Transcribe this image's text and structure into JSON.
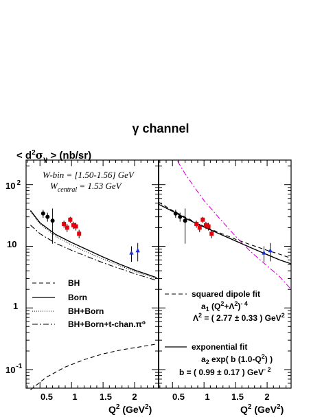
{
  "title": "γ channel",
  "yaxis_label": {
    "prefix": "< d",
    "sup": "2",
    "sym": "σ",
    "sub": "γ",
    "suffix": " >  (nb/sr)"
  },
  "xaxis_label": {
    "main": "Q",
    "sup": "2",
    "units": " (GeV",
    "units_sup": "2",
    "close": ")"
  },
  "bin_info": {
    "line1": "W-bin = [1.50-1.56] GeV",
    "line2_main": "W",
    "line2_sub": "central",
    "line2_rest": " = 1.53 GeV"
  },
  "y_tick_labels": [
    {
      "base": "10",
      "exp": "2",
      "value": 100
    },
    {
      "base": "10",
      "exp": "",
      "value": 10
    },
    {
      "base": "1",
      "exp": "",
      "value": 1
    },
    {
      "base": "10",
      "exp": "-1",
      "value": 0.1
    }
  ],
  "x_tick_labels": [
    "0.5",
    "1",
    "1.5",
    "2"
  ],
  "left_legend": [
    "BH",
    "Born",
    "BH+Born",
    "BH+Born+t-chan.π⁰"
  ],
  "right_legend": {
    "dipole_title": "squared dipole fit",
    "dipole_formula_a": "a",
    "dipole_formula_a_sub": "1",
    "dipole_formula_rest": "  (Q",
    "dipole_formula_q_sup": "2",
    "dipole_formula_mid": "+Λ",
    "dipole_formula_l_sup": "2",
    "dipole_formula_end": ")",
    "dipole_formula_exp": "- 4",
    "dipole_param_pre": "Λ",
    "dipole_param_sup": "2",
    "dipole_param_rest": " = ( 2.77 ± 0.33 ) GeV",
    "dipole_param_unit_sup": "2",
    "exp_title": "exponential fit",
    "exp_formula_a": "a",
    "exp_formula_a_sub": "2",
    "exp_formula_rest": "  exp( b (1.0-Q",
    "exp_formula_sup": "2",
    "exp_formula_end": ") )",
    "exp_param": "b = ( 0.99 ± 0.17 )  GeV",
    "exp_param_sup": "- 2"
  },
  "colors": {
    "black_points": "#000000",
    "red_points": "#e8000b",
    "blue_points": "#1f2bd6",
    "magenta_curve": "#e000e0"
  },
  "chart_data": {
    "type": "scatter",
    "title": "γ channel",
    "x_scale": "linear",
    "y_scale": "log",
    "xlim": [
      0.28,
      2.38
    ],
    "ylim": [
      0.05,
      250
    ],
    "panels": [
      {
        "name": "left",
        "series": [
          {
            "color": "black",
            "points": [
              {
                "x": 0.55,
                "y": 34,
                "err": 5
              },
              {
                "x": 0.62,
                "y": 30,
                "err": 5
              },
              {
                "x": 0.7,
                "y": 26,
                "err": 15
              }
            ]
          },
          {
            "color": "red",
            "points": [
              {
                "x": 0.88,
                "y": 23,
                "err": 3
              },
              {
                "x": 0.93,
                "y": 20,
                "err": 3
              },
              {
                "x": 0.98,
                "y": 27,
                "err": 3
              },
              {
                "x": 1.03,
                "y": 22,
                "err": 3
              },
              {
                "x": 1.07,
                "y": 21,
                "err": 3
              },
              {
                "x": 1.12,
                "y": 16,
                "err": 2.5
              }
            ]
          },
          {
            "color": "blue",
            "points": [
              {
                "x": 1.95,
                "y": 7.8,
                "err": 2.2
              },
              {
                "x": 2.05,
                "y": 8.5,
                "err": 2.8
              }
            ]
          }
        ],
        "curves": [
          {
            "name": "BH",
            "style": "dashed",
            "x": [
              0.35,
              0.6,
              0.9,
              1.2,
              1.5,
              1.8,
              2.1,
              2.35
            ],
            "y": [
              0.047,
              0.075,
              0.11,
              0.145,
              0.18,
              0.21,
              0.235,
              0.26
            ]
          },
          {
            "name": "Born",
            "style": "solid",
            "x": [
              0.35,
              0.5,
              0.75,
              1.0,
              1.25,
              1.5,
              1.75,
              2.0,
              2.2,
              2.35
            ],
            "y": [
              38,
              24,
              15.5,
              11.5,
              8.8,
              6.7,
              5.2,
              4.1,
              3.5,
              3.1
            ]
          },
          {
            "name": "BH+Born",
            "style": "dotted",
            "x": [
              0.35,
              0.5,
              0.75,
              1.0,
              1.25,
              1.5,
              1.75,
              2.0,
              2.2,
              2.35
            ],
            "y": [
              37,
              23,
              14.5,
              10.5,
              8.0,
              6.2,
              4.9,
              3.9,
              3.35,
              2.95
            ]
          },
          {
            "name": "BH+Born+t-chan.π⁰",
            "style": "dashdot",
            "x": [
              0.35,
              0.5,
              0.75,
              1.0,
              1.25,
              1.5,
              1.75,
              2.0,
              2.2,
              2.35
            ],
            "y": [
              22,
              16,
              11.2,
              8.6,
              6.8,
              5.4,
              4.4,
              3.6,
              3.1,
              2.8
            ]
          }
        ]
      },
      {
        "name": "right",
        "series": [
          {
            "color": "black",
            "points": [
              {
                "x": 0.55,
                "y": 34,
                "err": 5
              },
              {
                "x": 0.62,
                "y": 30,
                "err": 5
              },
              {
                "x": 0.7,
                "y": 26,
                "err": 15
              }
            ]
          },
          {
            "color": "red",
            "points": [
              {
                "x": 0.88,
                "y": 23,
                "err": 3
              },
              {
                "x": 0.93,
                "y": 20,
                "err": 3
              },
              {
                "x": 0.98,
                "y": 27,
                "err": 3
              },
              {
                "x": 1.03,
                "y": 22,
                "err": 3
              },
              {
                "x": 1.07,
                "y": 21,
                "err": 3
              },
              {
                "x": 1.12,
                "y": 16,
                "err": 2.5
              }
            ]
          },
          {
            "color": "blue",
            "points": [
              {
                "x": 1.95,
                "y": 7.8,
                "err": 2.2
              },
              {
                "x": 2.05,
                "y": 8.5,
                "err": 2.8
              }
            ]
          }
        ],
        "curves": [
          {
            "name": "squared dipole fit",
            "style": "dashed",
            "x": [
              0.28,
              0.5,
              0.75,
              1.0,
              1.25,
              1.5,
              1.75,
              2.0,
              2.2,
              2.38
            ],
            "y": [
              52,
              38,
              28,
              21,
              16.5,
              13,
              10.5,
              8.6,
              7.4,
              6.4
            ]
          },
          {
            "name": "exponential fit",
            "style": "solid",
            "x": [
              0.28,
              0.5,
              0.75,
              1.0,
              1.25,
              1.5,
              1.75,
              2.0,
              2.2,
              2.38
            ],
            "y": [
              48,
              37,
              27,
              20.5,
              15.8,
              12.2,
              9.4,
              7.3,
              6.0,
              5.2
            ]
          },
          {
            "name": "",
            "style": "dashdot",
            "color": "magenta",
            "x": [
              0.58,
              0.7,
              0.85,
              1.0,
              1.25,
              1.5,
              1.75,
              2.0,
              2.2,
              2.38
            ],
            "y": [
              240,
              150,
              90,
              55,
              28,
              14.5,
              8.0,
              4.8,
              3.2,
              2.0
            ]
          }
        ]
      }
    ]
  }
}
